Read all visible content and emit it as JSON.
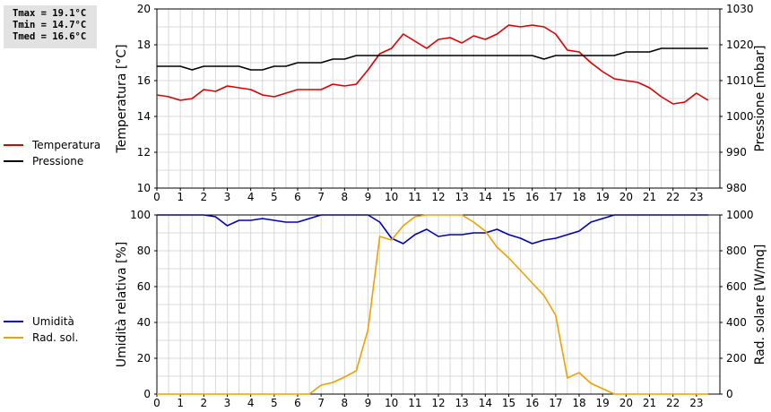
{
  "stats": [
    "Tmax = 19.1°C",
    "Tmin = 14.7°C",
    "Tmed = 16.6°C"
  ],
  "legend_top": [
    {
      "label": "Temperatura",
      "color": "#dd0000"
    },
    {
      "label": "Pressione",
      "color": "#000000"
    }
  ],
  "legend_bottom": [
    {
      "label": "Umidità",
      "color": "#0000bb"
    },
    {
      "label": "Rad. sol.",
      "color": "#f0a000"
    }
  ],
  "chart_data": [
    {
      "type": "line",
      "xlim": [
        0,
        24
      ],
      "xticks": [
        "0",
        "1",
        "2",
        "3",
        "4",
        "5",
        "6",
        "7",
        "8",
        "9",
        "10",
        "11",
        "12",
        "13",
        "14",
        "15",
        "16",
        "17",
        "18",
        "19",
        "20",
        "21",
        "22",
        "23"
      ],
      "ylabel_left": "Temperatura [°C]",
      "ylabel_right": "Pressione [mbar]",
      "ylim_left": [
        10,
        20
      ],
      "ylim_right": [
        980,
        1030
      ],
      "yticks_left": [
        "10",
        "12",
        "14",
        "16",
        "18",
        "20"
      ],
      "yticks_right": [
        "980",
        "990",
        "1000",
        "1010",
        "1020",
        "1030"
      ],
      "grid": true,
      "series": [
        {
          "name": "Temperatura",
          "axis": "left",
          "color": "#dd0000",
          "x": [
            0,
            0.5,
            1,
            1.5,
            2,
            2.5,
            3,
            3.5,
            4,
            4.5,
            5,
            5.5,
            6,
            6.5,
            7,
            7.5,
            8,
            8.5,
            9,
            9.5,
            10,
            10.5,
            11,
            11.5,
            12,
            12.5,
            13,
            13.5,
            14,
            14.5,
            15,
            15.5,
            16,
            16.5,
            17,
            17.5,
            18,
            18.5,
            19,
            19.5,
            20,
            20.5,
            21,
            21.5,
            22,
            22.5,
            23,
            23.5
          ],
          "y": [
            15.2,
            15.1,
            14.9,
            15.0,
            15.5,
            15.4,
            15.7,
            15.6,
            15.5,
            15.2,
            15.1,
            15.3,
            15.5,
            15.5,
            15.5,
            15.8,
            15.7,
            15.8,
            16.6,
            17.5,
            17.8,
            18.6,
            18.2,
            17.8,
            18.3,
            18.4,
            18.1,
            18.5,
            18.3,
            18.6,
            19.1,
            19.0,
            19.1,
            19.0,
            18.6,
            17.7,
            17.6,
            17.0,
            16.5,
            16.1,
            16.0,
            15.9,
            15.6,
            15.1,
            14.7,
            14.8,
            15.3,
            14.9
          ]
        },
        {
          "name": "Pressione",
          "axis": "right",
          "color": "#000000",
          "x": [
            0,
            0.5,
            1,
            1.5,
            2,
            2.5,
            3,
            3.5,
            4,
            4.5,
            5,
            5.5,
            6,
            6.5,
            7,
            7.5,
            8,
            8.5,
            9,
            9.5,
            10,
            10.5,
            11,
            11.5,
            12,
            12.5,
            13,
            13.5,
            14,
            14.5,
            15,
            15.5,
            16,
            16.5,
            17,
            17.5,
            18,
            18.5,
            19,
            19.5,
            20,
            20.5,
            21,
            21.5,
            22,
            22.5,
            23,
            23.5
          ],
          "y": [
            1014,
            1014,
            1014,
            1013,
            1014,
            1014,
            1014,
            1014,
            1013,
            1013,
            1014,
            1014,
            1015,
            1015,
            1015,
            1016,
            1016,
            1017,
            1017,
            1017,
            1017,
            1017,
            1017,
            1017,
            1017,
            1017,
            1017,
            1017,
            1017,
            1017,
            1017,
            1017,
            1017,
            1016,
            1017,
            1017,
            1017,
            1017,
            1017,
            1017,
            1018,
            1018,
            1018,
            1019,
            1019,
            1019,
            1019,
            1019
          ]
        }
      ]
    },
    {
      "type": "line",
      "xlim": [
        0,
        24
      ],
      "xticks": [
        "0",
        "1",
        "2",
        "3",
        "4",
        "5",
        "6",
        "7",
        "8",
        "9",
        "10",
        "11",
        "12",
        "13",
        "14",
        "15",
        "16",
        "17",
        "18",
        "19",
        "20",
        "21",
        "22",
        "23"
      ],
      "ylabel_left": "Umidità relativa [%]",
      "ylabel_right": "Rad. solare [W/mq]",
      "ylim_left": [
        0,
        100
      ],
      "ylim_right": [
        0,
        1000
      ],
      "yticks_left": [
        "0",
        "20",
        "40",
        "60",
        "80",
        "100"
      ],
      "yticks_right": [
        "0",
        "200",
        "400",
        "600",
        "800",
        "1000"
      ],
      "grid": true,
      "series": [
        {
          "name": "Umidità",
          "axis": "left",
          "color": "#0000bb",
          "x": [
            0,
            0.5,
            1,
            1.5,
            2,
            2.5,
            3,
            3.5,
            4,
            4.5,
            5,
            5.5,
            6,
            6.5,
            7,
            7.5,
            8,
            8.5,
            9,
            9.5,
            10,
            10.5,
            11,
            11.5,
            12,
            12.5,
            13,
            13.5,
            14,
            14.5,
            15,
            15.5,
            16,
            16.5,
            17,
            17.5,
            18,
            18.5,
            19,
            19.5,
            20,
            20.5,
            21,
            21.5,
            22,
            22.5,
            23,
            23.5
          ],
          "y": [
            100,
            100,
            100,
            100,
            100,
            99,
            94,
            97,
            97,
            98,
            97,
            96,
            96,
            98,
            100,
            100,
            100,
            100,
            100,
            96,
            87,
            84,
            89,
            92,
            88,
            89,
            89,
            90,
            90,
            92,
            89,
            87,
            84,
            86,
            87,
            89,
            91,
            96,
            98,
            100,
            100,
            100,
            100,
            100,
            100,
            100,
            100,
            100
          ]
        },
        {
          "name": "Rad. sol.",
          "axis": "right",
          "color": "#f0a000",
          "x": [
            0,
            0.5,
            1,
            1.5,
            2,
            2.5,
            3,
            3.5,
            4,
            4.5,
            5,
            5.5,
            6,
            6.5,
            7,
            7.5,
            8,
            8.5,
            9,
            9.5,
            10,
            10.5,
            11,
            11.5,
            12,
            12.5,
            13,
            13.5,
            14,
            14.5,
            15,
            15.5,
            16,
            16.5,
            17,
            17.5,
            18,
            18.5,
            19,
            19.5,
            20,
            20.5,
            21,
            21.5,
            22,
            22.5,
            23,
            23.5
          ],
          "y": [
            0,
            0,
            0,
            0,
            0,
            0,
            0,
            0,
            0,
            0,
            0,
            0,
            0,
            0,
            50,
            65,
            95,
            130,
            360,
            880,
            860,
            940,
            990,
            1000,
            1000,
            1000,
            1000,
            960,
            910,
            820,
            760,
            690,
            620,
            550,
            440,
            90,
            120,
            60,
            30,
            0,
            0,
            0,
            0,
            0,
            0,
            0,
            0,
            0
          ]
        }
      ]
    }
  ]
}
